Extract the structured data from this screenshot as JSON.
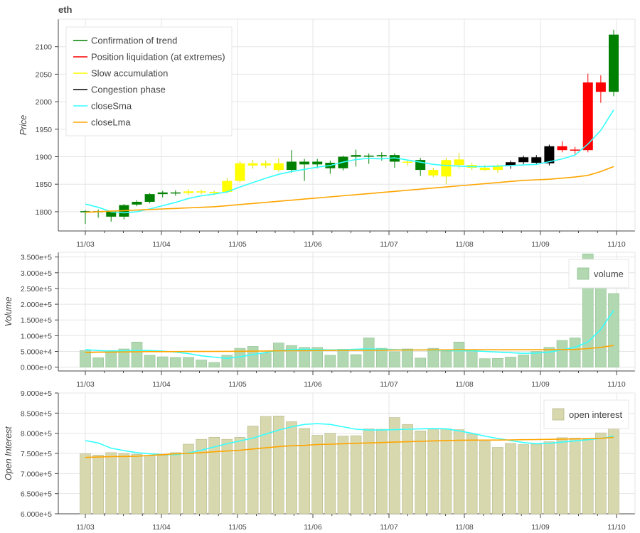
{
  "title": "eth",
  "chart_data": [
    {
      "panel": "price",
      "type": "candlestick",
      "ylabel": "Price",
      "ylim": [
        1765,
        2150
      ],
      "yticks": [
        1800,
        1850,
        1900,
        1950,
        2000,
        2050,
        2100
      ],
      "xticks": [
        "11/03",
        "11/04",
        "11/05",
        "11/06",
        "11/07",
        "11/08",
        "11/09",
        "11/10"
      ],
      "grid": true,
      "legend_position": "top-left",
      "legend": [
        {
          "label": "Confirmation of trend",
          "color": "#008000"
        },
        {
          "label": "Position liquidation (at extremes)",
          "color": "#ff0000"
        },
        {
          "label": "Slow accumulation",
          "color": "#ffff00"
        },
        {
          "label": "Congestion phase",
          "color": "#000000"
        },
        {
          "label": "closeSma",
          "color": "#33ffff"
        },
        {
          "label": "closeLma",
          "color": "#ffa500"
        }
      ],
      "candles": [
        {
          "o": 1799,
          "h": 1803,
          "l": 1778,
          "c": 1801,
          "phase": "green"
        },
        {
          "o": 1801,
          "h": 1804,
          "l": 1789,
          "c": 1799,
          "phase": "green"
        },
        {
          "o": 1791,
          "h": 1802,
          "l": 1782,
          "c": 1801,
          "phase": "green"
        },
        {
          "o": 1791,
          "h": 1814,
          "l": 1786,
          "c": 1812,
          "phase": "green"
        },
        {
          "o": 1813,
          "h": 1821,
          "l": 1810,
          "c": 1818,
          "phase": "green"
        },
        {
          "o": 1818,
          "h": 1834,
          "l": 1815,
          "c": 1832,
          "phase": "green"
        },
        {
          "o": 1832,
          "h": 1838,
          "l": 1826,
          "c": 1835,
          "phase": "green"
        },
        {
          "o": 1835,
          "h": 1839,
          "l": 1829,
          "c": 1834,
          "phase": "green"
        },
        {
          "o": 1834,
          "h": 1841,
          "l": 1830,
          "c": 1837,
          "phase": "yellow"
        },
        {
          "o": 1837,
          "h": 1840,
          "l": 1832,
          "c": 1835,
          "phase": "yellow"
        },
        {
          "o": 1835,
          "h": 1838,
          "l": 1830,
          "c": 1836,
          "phase": "yellow"
        },
        {
          "o": 1836,
          "h": 1861,
          "l": 1833,
          "c": 1856,
          "phase": "yellow"
        },
        {
          "o": 1856,
          "h": 1892,
          "l": 1853,
          "c": 1888,
          "phase": "yellow"
        },
        {
          "o": 1888,
          "h": 1894,
          "l": 1878,
          "c": 1884,
          "phase": "yellow"
        },
        {
          "o": 1884,
          "h": 1893,
          "l": 1879,
          "c": 1888,
          "phase": "yellow"
        },
        {
          "o": 1888,
          "h": 1897,
          "l": 1873,
          "c": 1876,
          "phase": "yellow"
        },
        {
          "o": 1876,
          "h": 1912,
          "l": 1871,
          "c": 1891,
          "phase": "green"
        },
        {
          "o": 1891,
          "h": 1896,
          "l": 1856,
          "c": 1886,
          "phase": "green"
        },
        {
          "o": 1886,
          "h": 1896,
          "l": 1879,
          "c": 1891,
          "phase": "green"
        },
        {
          "o": 1889,
          "h": 1893,
          "l": 1869,
          "c": 1879,
          "phase": "green"
        },
        {
          "o": 1879,
          "h": 1902,
          "l": 1875,
          "c": 1900,
          "phase": "green"
        },
        {
          "o": 1900,
          "h": 1913,
          "l": 1882,
          "c": 1903,
          "phase": "green"
        },
        {
          "o": 1901,
          "h": 1906,
          "l": 1887,
          "c": 1902,
          "phase": "green"
        },
        {
          "o": 1901,
          "h": 1908,
          "l": 1893,
          "c": 1903,
          "phase": "green"
        },
        {
          "o": 1903,
          "h": 1906,
          "l": 1880,
          "c": 1891,
          "phase": "green"
        },
        {
          "o": 1891,
          "h": 1895,
          "l": 1884,
          "c": 1889,
          "phase": "yellow"
        },
        {
          "o": 1894,
          "h": 1898,
          "l": 1865,
          "c": 1876,
          "phase": "green"
        },
        {
          "o": 1876,
          "h": 1880,
          "l": 1863,
          "c": 1866,
          "phase": "yellow"
        },
        {
          "o": 1864,
          "h": 1898,
          "l": 1850,
          "c": 1894,
          "phase": "yellow"
        },
        {
          "o": 1895,
          "h": 1907,
          "l": 1878,
          "c": 1885,
          "phase": "yellow"
        },
        {
          "o": 1885,
          "h": 1889,
          "l": 1876,
          "c": 1880,
          "phase": "yellow"
        },
        {
          "o": 1880,
          "h": 1885,
          "l": 1874,
          "c": 1876,
          "phase": "yellow"
        },
        {
          "o": 1876,
          "h": 1886,
          "l": 1871,
          "c": 1884,
          "phase": "yellow"
        },
        {
          "o": 1884,
          "h": 1893,
          "l": 1878,
          "c": 1890,
          "phase": "black"
        },
        {
          "o": 1890,
          "h": 1902,
          "l": 1886,
          "c": 1899,
          "phase": "black"
        },
        {
          "o": 1889,
          "h": 1903,
          "l": 1886,
          "c": 1899,
          "phase": "black"
        },
        {
          "o": 1888,
          "h": 1922,
          "l": 1884,
          "c": 1919,
          "phase": "black"
        },
        {
          "o": 1919,
          "h": 1928,
          "l": 1908,
          "c": 1912,
          "phase": "red"
        },
        {
          "o": 1911,
          "h": 1918,
          "l": 1905,
          "c": 1913,
          "phase": "red"
        },
        {
          "o": 2035,
          "h": 2051,
          "l": 1908,
          "c": 1912,
          "phase": "red"
        },
        {
          "o": 2035,
          "h": 2048,
          "l": 1998,
          "c": 2018,
          "phase": "red"
        },
        {
          "o": 2018,
          "h": 2131,
          "l": 2010,
          "c": 2122,
          "phase": "green"
        }
      ],
      "closeSma": [
        1814,
        1808,
        1800,
        1798,
        1800,
        1805,
        1811,
        1817,
        1824,
        1829,
        1832,
        1836,
        1845,
        1853,
        1861,
        1868,
        1873,
        1877,
        1881,
        1884,
        1890,
        1895,
        1897,
        1896,
        1898,
        1894,
        1890,
        1886,
        1884,
        1883,
        1882,
        1882,
        1883,
        1884,
        1885,
        1886,
        1891,
        1896,
        1903,
        1923,
        1948,
        1985
      ],
      "closeLma": [
        1799,
        1800,
        1801,
        1802,
        1803,
        1804,
        1805,
        1806,
        1807,
        1808,
        1809,
        1811,
        1813,
        1815,
        1817,
        1819,
        1821,
        1823,
        1825,
        1827,
        1829,
        1831,
        1833,
        1835,
        1837,
        1839,
        1841,
        1843,
        1845,
        1847,
        1849,
        1851,
        1853,
        1855,
        1857,
        1858,
        1859,
        1861,
        1863,
        1866,
        1873,
        1882
      ]
    },
    {
      "panel": "volume",
      "type": "bar",
      "ylabel": "Volume",
      "ylim": [
        -12000,
        365000
      ],
      "yticks": [
        0,
        50000,
        100000,
        150000,
        200000,
        250000,
        300000,
        350000
      ],
      "ytick_labels": [
        "0.000e+0",
        "5.000e+4",
        "1.000e+5",
        "1.500e+5",
        "2.000e+5",
        "2.500e+5",
        "3.000e+5",
        "3.500e+5"
      ],
      "xticks": [
        "11/03",
        "11/04",
        "11/05",
        "11/06",
        "11/07",
        "11/08",
        "11/09",
        "11/10"
      ],
      "grid": true,
      "legend_position": "top-right",
      "legend": [
        {
          "label": "volume",
          "color": "#b2d8b2"
        }
      ],
      "values": [
        53000,
        30000,
        53000,
        58000,
        80000,
        38000,
        33000,
        31000,
        31000,
        23000,
        15000,
        38000,
        60000,
        66000,
        45000,
        77000,
        69000,
        63000,
        63000,
        38000,
        57000,
        40000,
        93000,
        60000,
        49000,
        58000,
        29000,
        60000,
        50000,
        80000,
        55000,
        27000,
        28000,
        32000,
        39000,
        50000,
        63000,
        85000,
        93000,
        360000,
        333000,
        234000
      ],
      "sma": [
        56000,
        53000,
        51000,
        52000,
        53000,
        53000,
        51000,
        48000,
        43000,
        36000,
        32000,
        28000,
        33000,
        40000,
        47000,
        53000,
        56000,
        57000,
        56000,
        55000,
        55000,
        57000,
        58000,
        57000,
        56000,
        55000,
        55000,
        54000,
        53000,
        52000,
        52000,
        50000,
        48000,
        46000,
        44000,
        45000,
        48000,
        55000,
        63000,
        80000,
        120000,
        180000
      ],
      "lma": [
        47000,
        47500,
        48000,
        48500,
        49000,
        49300,
        49500,
        49700,
        49800,
        49900,
        50000,
        50200,
        50500,
        51000,
        51500,
        52000,
        52300,
        52600,
        53000,
        53300,
        53500,
        53700,
        54000,
        54200,
        54400,
        54600,
        54800,
        55000,
        55100,
        55200,
        55300,
        55300,
        55300,
        55300,
        55300,
        55400,
        55500,
        56000,
        56500,
        59000,
        63000,
        69000
      ]
    },
    {
      "panel": "open_interest",
      "type": "bar",
      "ylabel": "Open Interest",
      "ylim": [
        600000,
        900000
      ],
      "yticks": [
        600000,
        650000,
        700000,
        750000,
        800000,
        850000,
        900000
      ],
      "ytick_labels": [
        "6.000e+5",
        "6.500e+5",
        "7.000e+5",
        "7.500e+5",
        "8.000e+5",
        "8.500e+5",
        "9.000e+5"
      ],
      "xticks": [
        "11/03",
        "11/04",
        "11/05",
        "11/06",
        "11/07",
        "11/08",
        "11/09",
        "11/10"
      ],
      "grid": true,
      "legend_position": "top-right",
      "legend": [
        {
          "label": "open interest",
          "color": "#d8d8ae"
        }
      ],
      "values": [
        749000,
        746000,
        752000,
        750000,
        748000,
        745000,
        745000,
        752000,
        773000,
        785000,
        790000,
        785000,
        790000,
        818000,
        842000,
        843000,
        829000,
        812000,
        795000,
        800000,
        793000,
        794000,
        811000,
        810000,
        839000,
        822000,
        806000,
        809000,
        811000,
        809000,
        798000,
        780000,
        765000,
        775000,
        772000,
        773000,
        779000,
        789000,
        788000,
        785000,
        801000,
        811000
      ],
      "sma": [
        782000,
        776000,
        763000,
        757000,
        752000,
        749000,
        747000,
        747000,
        751000,
        758000,
        766000,
        774000,
        781000,
        788000,
        798000,
        808000,
        816000,
        822000,
        824000,
        822000,
        816000,
        810000,
        808000,
        808000,
        809000,
        810000,
        811000,
        812000,
        811000,
        806000,
        800000,
        793000,
        787000,
        782000,
        777000,
        774000,
        775000,
        778000,
        781000,
        784000,
        787000,
        793000
      ],
      "lma": [
        740000,
        741000,
        742000,
        742500,
        743000,
        745000,
        747000,
        749000,
        750000,
        752000,
        754000,
        756000,
        758000,
        761000,
        764000,
        767000,
        769000,
        770000,
        772000,
        773000,
        774000,
        775000,
        776000,
        777000,
        778000,
        779000,
        780000,
        781000,
        782000,
        782500,
        783000,
        783000,
        783200,
        783500,
        784000,
        784500,
        785000,
        785500,
        786000,
        786500,
        787500,
        790000
      ]
    }
  ]
}
